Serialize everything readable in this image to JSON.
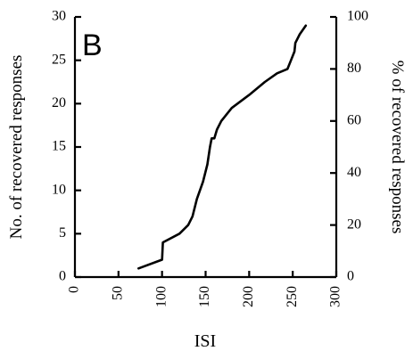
{
  "chart_data": {
    "type": "line",
    "panel_label": "B",
    "xlabel": "ISI",
    "ylabel": "No. of recovered responses",
    "y2label": "% of recovered responses",
    "xlim": [
      0,
      300
    ],
    "ylim": [
      0,
      30
    ],
    "y2lim": [
      0,
      100
    ],
    "x_ticks": [
      "0",
      "50",
      "100",
      "150",
      "200",
      "250",
      "300"
    ],
    "y_ticks": [
      "0",
      "5",
      "10",
      "15",
      "20",
      "25",
      "30"
    ],
    "y2_ticks": [
      "0",
      "20",
      "40",
      "60",
      "80",
      "100"
    ],
    "grid": false,
    "series": [
      {
        "points": [
          [
            73,
            1
          ],
          [
            100,
            2
          ],
          [
            101,
            4
          ],
          [
            120,
            5
          ],
          [
            130,
            6
          ],
          [
            135,
            7
          ],
          [
            140,
            9
          ],
          [
            147,
            11
          ],
          [
            152,
            13
          ],
          [
            155,
            15
          ],
          [
            157,
            16
          ],
          [
            160,
            16
          ],
          [
            163,
            17
          ],
          [
            168,
            18
          ],
          [
            172,
            18.5
          ],
          [
            180,
            19.5
          ],
          [
            200,
            21
          ],
          [
            218,
            22.5
          ],
          [
            232,
            23.5
          ],
          [
            244,
            24
          ],
          [
            248,
            25
          ],
          [
            252,
            26
          ],
          [
            253,
            27
          ],
          [
            258,
            28
          ],
          [
            265,
            29
          ]
        ]
      }
    ]
  }
}
